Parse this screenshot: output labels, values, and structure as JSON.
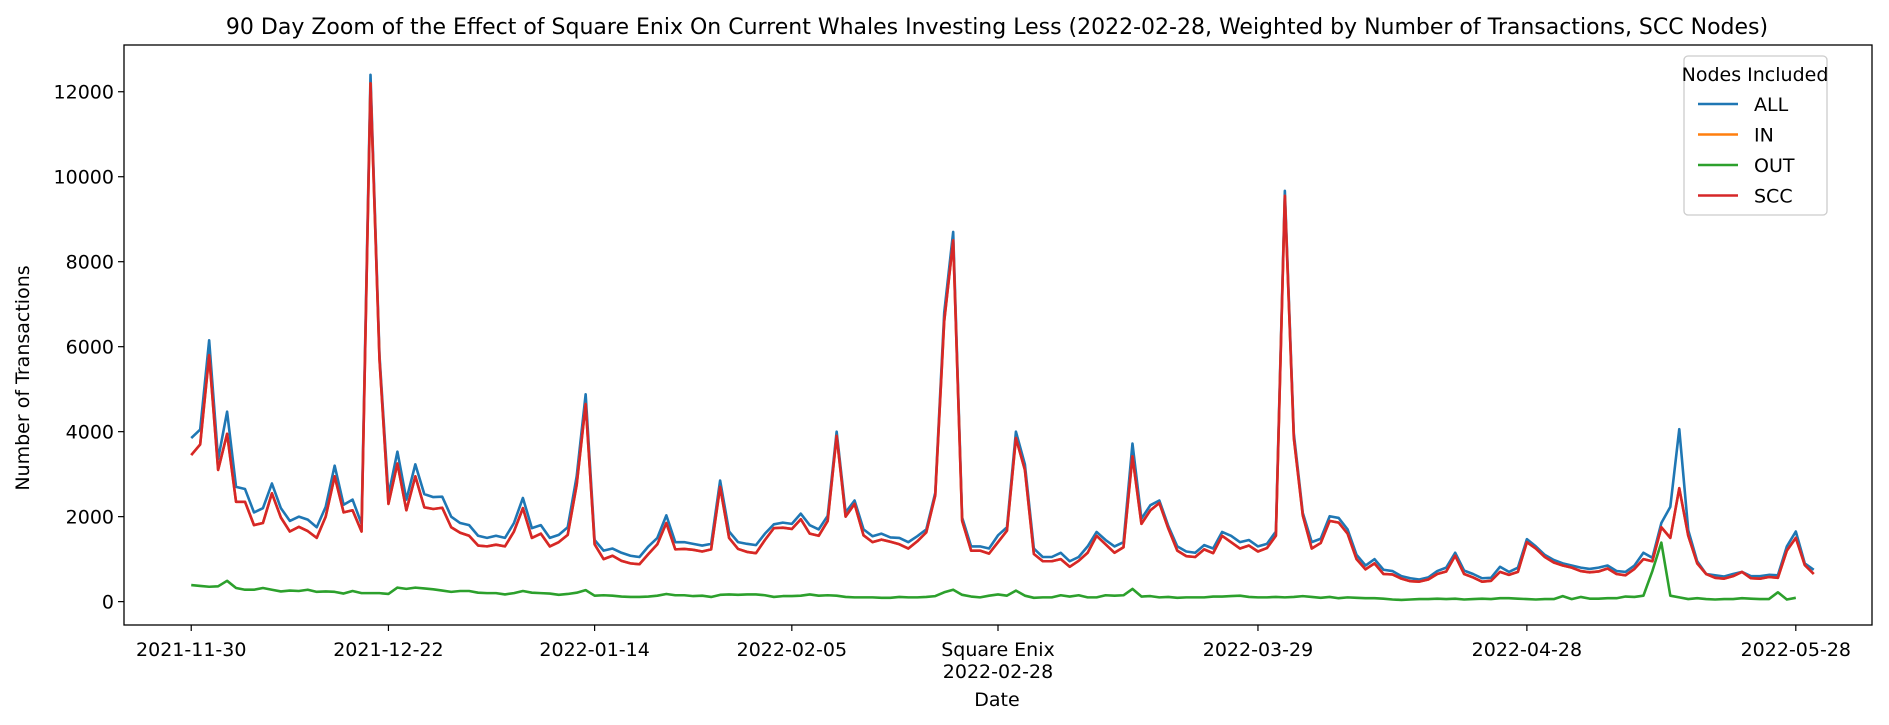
{
  "chart_data": {
    "type": "line",
    "title": "90 Day Zoom of the Effect of Square Enix On Current Whales Investing Less (2022-02-28, Weighted by Number of Transactions, SCC Nodes)",
    "xlabel": "Date",
    "ylabel": "Number of Transactions",
    "ylim": [
      -550,
      13100
    ],
    "yticks": [
      0,
      2000,
      4000,
      6000,
      8000,
      10000,
      12000
    ],
    "x_start_date": "2021-11-30",
    "x_end_date": "2022-05-28",
    "xlim_days": [
      -7.5,
      187.5
    ],
    "xticks": [
      {
        "day": 0,
        "label": "2021-11-30"
      },
      {
        "day": 22,
        "label": "2021-12-22"
      },
      {
        "day": 45,
        "label": "2022-01-14"
      },
      {
        "day": 67,
        "label": "2022-02-05"
      },
      {
        "day": 90,
        "label": "Square Enix\n2022-02-28"
      },
      {
        "day": 119,
        "label": "2022-03-29"
      },
      {
        "day": 149,
        "label": "2022-04-28"
      },
      {
        "day": 179,
        "label": "2022-05-28"
      }
    ],
    "legend_title": "Nodes Included",
    "legend_position": "top-right",
    "series": [
      {
        "name": "ALL",
        "color": "#1f77b4",
        "values": [
          3850,
          4050,
          6150,
          3350,
          4470,
          2700,
          2650,
          2100,
          2200,
          2780,
          2200,
          1900,
          2000,
          1930,
          1750,
          2230,
          3200,
          2280,
          2400,
          1830,
          12400,
          5800,
          2500,
          3530,
          2400,
          3230,
          2530,
          2460,
          2470,
          2000,
          1850,
          1800,
          1550,
          1500,
          1550,
          1500,
          1850,
          2440,
          1730,
          1800,
          1500,
          1570,
          1750,
          2950,
          4880,
          1450,
          1200,
          1250,
          1150,
          1080,
          1050,
          1300,
          1500,
          2030,
          1400,
          1400,
          1360,
          1320,
          1360,
          2850,
          1650,
          1400,
          1360,
          1330,
          1600,
          1820,
          1860,
          1830,
          2070,
          1800,
          1700,
          2020,
          4000,
          2100,
          2380,
          1700,
          1540,
          1600,
          1510,
          1500,
          1400,
          1540,
          1700,
          2560,
          6800,
          8700,
          1980,
          1300,
          1300,
          1250,
          1560,
          1750,
          4000,
          3230,
          1250,
          1050,
          1050,
          1150,
          950,
          1050,
          1300,
          1640,
          1450,
          1300,
          1400,
          3720,
          1950,
          2270,
          2380,
          1780,
          1300,
          1180,
          1150,
          1330,
          1250,
          1640,
          1550,
          1400,
          1450,
          1300,
          1360,
          1650,
          9670,
          3960,
          2090,
          1400,
          1480,
          2010,
          1970,
          1700,
          1100,
          850,
          1000,
          750,
          720,
          600,
          550,
          520,
          570,
          720,
          800,
          1150,
          730,
          650,
          550,
          560,
          820,
          700,
          800,
          1470,
          1300,
          1100,
          980,
          900,
          850,
          800,
          770,
          800,
          850,
          720,
          700,
          850,
          1150,
          1030,
          1850,
          2230,
          4060,
          1680,
          950,
          650,
          620,
          590,
          650,
          700,
          600,
          600,
          630,
          620,
          1300,
          1650,
          900,
          750
        ]
      },
      {
        "name": "IN",
        "color": "#ff7f0e",
        "values": [
          3450,
          3700,
          5800,
          3100,
          3950,
          2350,
          2350,
          1800,
          1850,
          2550,
          1980,
          1650,
          1760,
          1660,
          1500,
          2000,
          2950,
          2100,
          2150,
          1650,
          12200,
          5700,
          2300,
          3250,
          2150,
          2950,
          2220,
          2180,
          2210,
          1750,
          1620,
          1550,
          1320,
          1300,
          1340,
          1300,
          1650,
          2200,
          1500,
          1600,
          1300,
          1400,
          1570,
          2750,
          4650,
          1350,
          1000,
          1080,
          960,
          900,
          880,
          1120,
          1350,
          1850,
          1230,
          1240,
          1220,
          1180,
          1230,
          2700,
          1500,
          1240,
          1170,
          1140,
          1450,
          1730,
          1740,
          1710,
          1940,
          1600,
          1550,
          1900,
          3900,
          2000,
          2300,
          1560,
          1400,
          1460,
          1410,
          1350,
          1250,
          1420,
          1630,
          2500,
          6600,
          8500,
          1900,
          1200,
          1200,
          1130,
          1400,
          1670,
          3850,
          3100,
          1120,
          950,
          950,
          1000,
          820,
          960,
          1150,
          1550,
          1350,
          1150,
          1280,
          3420,
          1830,
          2150,
          2320,
          1720,
          1200,
          1070,
          1050,
          1230,
          1140,
          1550,
          1400,
          1250,
          1320,
          1180,
          1260,
          1550,
          9550,
          3850,
          2030,
          1250,
          1380,
          1900,
          1860,
          1600,
          1000,
          760,
          900,
          650,
          640,
          540,
          480,
          470,
          520,
          650,
          710,
          1080,
          650,
          570,
          470,
          490,
          700,
          630,
          700,
          1400,
          1250,
          1050,
          920,
          850,
          800,
          720,
          690,
          710,
          780,
          650,
          620,
          770,
          1000,
          950,
          1750,
          1500,
          2670,
          1550,
          900,
          650,
          560,
          540,
          600,
          700,
          550,
          540,
          580,
          560,
          1200,
          1500,
          860,
          650
        ]
      },
      {
        "name": "OUT",
        "color": "#2ca02c",
        "values": [
          390,
          370,
          350,
          360,
          490,
          320,
          280,
          280,
          320,
          280,
          240,
          260,
          250,
          280,
          230,
          240,
          230,
          190,
          250,
          200,
          200,
          200,
          180,
          330,
          300,
          330,
          310,
          290,
          260,
          230,
          250,
          250,
          210,
          200,
          200,
          170,
          200,
          250,
          210,
          200,
          190,
          160,
          180,
          210,
          270,
          140,
          150,
          140,
          120,
          110,
          110,
          120,
          140,
          180,
          150,
          150,
          130,
          140,
          110,
          160,
          170,
          160,
          170,
          170,
          150,
          110,
          130,
          130,
          140,
          170,
          140,
          150,
          140,
          110,
          100,
          100,
          100,
          90,
          90,
          110,
          100,
          100,
          110,
          130,
          220,
          280,
          160,
          120,
          100,
          140,
          170,
          140,
          260,
          140,
          90,
          100,
          100,
          150,
          120,
          150,
          100,
          100,
          150,
          140,
          150,
          300,
          120,
          130,
          100,
          110,
          90,
          100,
          100,
          100,
          120,
          120,
          130,
          140,
          110,
          100,
          100,
          110,
          100,
          110,
          130,
          110,
          90,
          110,
          80,
          100,
          90,
          80,
          80,
          70,
          50,
          40,
          50,
          60,
          60,
          70,
          60,
          70,
          50,
          60,
          70,
          60,
          80,
          80,
          70,
          60,
          50,
          60,
          60,
          130,
          60,
          110,
          70,
          70,
          80,
          80,
          120,
          110,
          140,
          720,
          1390,
          140,
          100,
          60,
          80,
          60,
          50,
          60,
          60,
          80,
          70,
          60,
          60,
          220,
          50,
          90
        ]
      },
      {
        "name": "SCC",
        "color": "#d62728",
        "values": [
          3450,
          3700,
          5800,
          3100,
          3950,
          2350,
          2350,
          1800,
          1850,
          2550,
          1980,
          1650,
          1760,
          1660,
          1500,
          2000,
          2950,
          2100,
          2150,
          1650,
          12200,
          5700,
          2300,
          3250,
          2150,
          2950,
          2220,
          2180,
          2210,
          1750,
          1620,
          1550,
          1320,
          1300,
          1340,
          1300,
          1650,
          2200,
          1500,
          1600,
          1300,
          1400,
          1570,
          2750,
          4650,
          1350,
          1000,
          1080,
          960,
          900,
          880,
          1120,
          1350,
          1850,
          1230,
          1240,
          1220,
          1180,
          1230,
          2700,
          1500,
          1240,
          1170,
          1140,
          1450,
          1730,
          1740,
          1710,
          1940,
          1600,
          1550,
          1900,
          3900,
          2000,
          2300,
          1560,
          1400,
          1460,
          1410,
          1350,
          1250,
          1420,
          1630,
          2500,
          6600,
          8500,
          1900,
          1200,
          1200,
          1130,
          1400,
          1670,
          3850,
          3100,
          1120,
          950,
          950,
          1000,
          820,
          960,
          1150,
          1550,
          1350,
          1150,
          1280,
          3420,
          1830,
          2150,
          2320,
          1720,
          1200,
          1070,
          1050,
          1230,
          1140,
          1550,
          1400,
          1250,
          1320,
          1180,
          1260,
          1550,
          9550,
          3850,
          2030,
          1250,
          1380,
          1900,
          1860,
          1600,
          1000,
          760,
          900,
          650,
          640,
          540,
          480,
          470,
          520,
          650,
          710,
          1080,
          650,
          570,
          470,
          490,
          700,
          630,
          700,
          1400,
          1250,
          1050,
          920,
          850,
          800,
          720,
          690,
          710,
          780,
          650,
          620,
          770,
          1000,
          950,
          1750,
          1500,
          2670,
          1550,
          900,
          650,
          560,
          540,
          600,
          700,
          550,
          540,
          580,
          560,
          1200,
          1500,
          860,
          650
        ]
      }
    ]
  }
}
